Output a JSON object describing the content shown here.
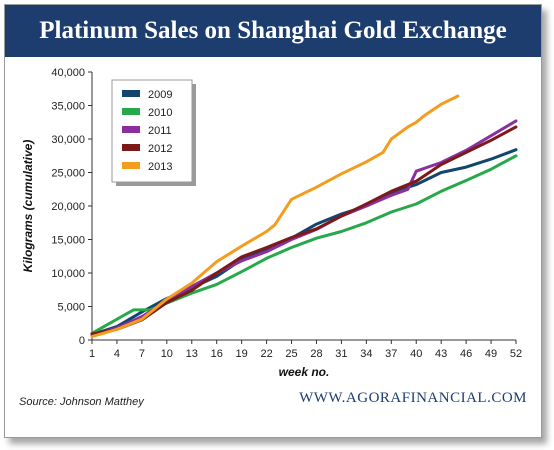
{
  "header": {
    "title": "Platinum Sales on Shanghai Gold Exchange"
  },
  "footer": {
    "source": "Source: Johnson Matthey",
    "brand": "WWW.AGORAFINANCIAL.COM"
  },
  "chart_data": {
    "type": "line",
    "title": "Platinum Sales on Shanghai Gold Exchange",
    "xlabel": "week no.",
    "ylabel": "Kilograms (cumulative)",
    "xlim": [
      1,
      52
    ],
    "ylim": [
      0,
      40000
    ],
    "x_ticks": [
      "1",
      "4",
      "7",
      "10",
      "13",
      "16",
      "19",
      "22",
      "25",
      "28",
      "31",
      "34",
      "37",
      "40",
      "43",
      "46",
      "49",
      "52"
    ],
    "y_ticks": [
      "0",
      "5,000",
      "10,000",
      "15,000",
      "20,000",
      "25,000",
      "30,000",
      "35,000",
      "40,000"
    ],
    "legend_position": "top-left",
    "series": [
      {
        "name": "2009",
        "color": "#13466e",
        "points": [
          [
            1,
            800
          ],
          [
            4,
            2000
          ],
          [
            7,
            4200
          ],
          [
            10,
            6200
          ],
          [
            13,
            7800
          ],
          [
            16,
            9500
          ],
          [
            19,
            12000
          ],
          [
            22,
            13500
          ],
          [
            25,
            15200
          ],
          [
            28,
            17300
          ],
          [
            31,
            18800
          ],
          [
            34,
            20000
          ],
          [
            37,
            22000
          ],
          [
            40,
            23200
          ],
          [
            43,
            25000
          ],
          [
            46,
            25800
          ],
          [
            49,
            27000
          ],
          [
            52,
            28400
          ]
        ]
      },
      {
        "name": "2010",
        "color": "#27a84a",
        "points": [
          [
            1,
            1000
          ],
          [
            3,
            2400
          ],
          [
            5,
            3800
          ],
          [
            6,
            4500
          ],
          [
            8,
            4500
          ],
          [
            10,
            5500
          ],
          [
            13,
            7000
          ],
          [
            16,
            8300
          ],
          [
            19,
            10200
          ],
          [
            22,
            12200
          ],
          [
            25,
            13800
          ],
          [
            28,
            15200
          ],
          [
            31,
            16200
          ],
          [
            34,
            17500
          ],
          [
            37,
            19100
          ],
          [
            40,
            20300
          ],
          [
            43,
            22200
          ],
          [
            46,
            23800
          ],
          [
            49,
            25500
          ],
          [
            52,
            27500
          ]
        ]
      },
      {
        "name": "2011",
        "color": "#8b2fa0",
        "points": [
          [
            1,
            700
          ],
          [
            4,
            1800
          ],
          [
            7,
            3500
          ],
          [
            10,
            5800
          ],
          [
            13,
            8000
          ],
          [
            16,
            10000
          ],
          [
            19,
            11800
          ],
          [
            22,
            13200
          ],
          [
            25,
            15000
          ],
          [
            28,
            16500
          ],
          [
            31,
            18500
          ],
          [
            34,
            20000
          ],
          [
            37,
            21600
          ],
          [
            39,
            22500
          ],
          [
            40,
            25200
          ],
          [
            43,
            26500
          ],
          [
            46,
            28300
          ],
          [
            49,
            30500
          ],
          [
            52,
            32700
          ]
        ]
      },
      {
        "name": "2012",
        "color": "#7d1919",
        "points": [
          [
            1,
            900
          ],
          [
            4,
            1600
          ],
          [
            7,
            3000
          ],
          [
            10,
            5600
          ],
          [
            13,
            7400
          ],
          [
            16,
            10000
          ],
          [
            19,
            12400
          ],
          [
            22,
            13800
          ],
          [
            25,
            15300
          ],
          [
            28,
            16600
          ],
          [
            31,
            18500
          ],
          [
            34,
            20300
          ],
          [
            37,
            22200
          ],
          [
            40,
            23700
          ],
          [
            43,
            26200
          ],
          [
            46,
            28000
          ],
          [
            49,
            29800
          ],
          [
            52,
            31800
          ]
        ]
      },
      {
        "name": "2013",
        "color": "#f39c1e",
        "points": [
          [
            1,
            500
          ],
          [
            4,
            1600
          ],
          [
            7,
            3100
          ],
          [
            10,
            6100
          ],
          [
            13,
            8500
          ],
          [
            16,
            11700
          ],
          [
            19,
            14000
          ],
          [
            22,
            16200
          ],
          [
            23,
            17200
          ],
          [
            25,
            21000
          ],
          [
            28,
            22800
          ],
          [
            31,
            24800
          ],
          [
            34,
            26600
          ],
          [
            36,
            28000
          ],
          [
            37,
            30000
          ],
          [
            39,
            31800
          ],
          [
            40,
            32500
          ],
          [
            41,
            33500
          ],
          [
            43,
            35200
          ],
          [
            45,
            36400
          ]
        ]
      }
    ]
  }
}
